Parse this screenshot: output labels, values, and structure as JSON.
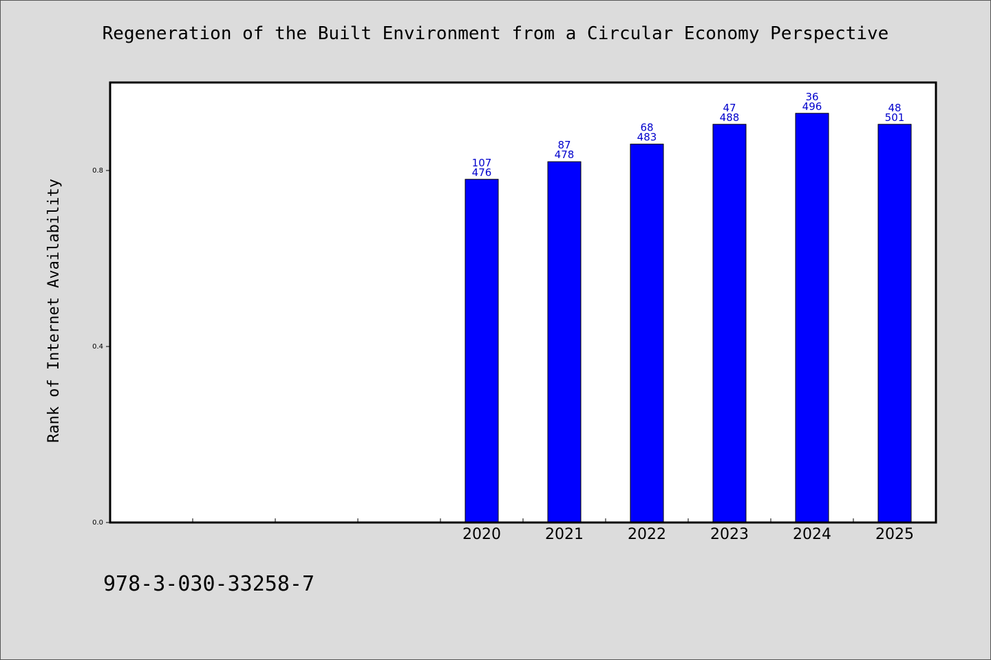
{
  "chart_data": {
    "type": "bar",
    "title": "Regeneration of the Built Environment from a Circular Economy Perspective",
    "xlabel": "",
    "ylabel": "Rank of Internet Availability",
    "categories": [
      "2020",
      "2021",
      "2022",
      "2023",
      "2024",
      "2025"
    ],
    "values": [
      0.78,
      0.82,
      0.86,
      0.905,
      0.93,
      0.905
    ],
    "bar_labels_top": [
      "107",
      "87",
      "68",
      "47",
      "36",
      "48"
    ],
    "bar_labels_bottom": [
      "476",
      "478",
      "483",
      "488",
      "496",
      "501"
    ],
    "empty_slots_before": 4,
    "ylim": [
      0,
      1.0
    ],
    "yticks": [
      0.0,
      0.4,
      0.8
    ],
    "ytick_labels": [
      "0.0",
      "0.4",
      "0.8"
    ],
    "grid": false,
    "bar_color": "#0000ff",
    "label_color": "#0000cc"
  },
  "footer": {
    "code": "978-3-030-33258-7"
  }
}
